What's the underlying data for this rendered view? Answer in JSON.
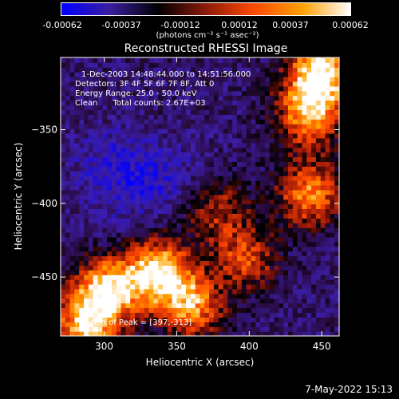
{
  "colorbar": {
    "tick_labels": [
      "-0.00062",
      "-0.00037",
      "-0.00012",
      "0.00012",
      "0.00037",
      "0.00062"
    ],
    "units": "(photons cm⁻² s⁻¹ asec⁻²)",
    "colors": [
      "#0000ff",
      "#3a1ea0",
      "#000000",
      "#8b1a0a",
      "#ff4a00",
      "#ffa000",
      "#ffffff"
    ]
  },
  "chart_data": {
    "type": "heatmap",
    "title": "Reconstructed RHESSI Image",
    "xlabel": "Heliocentric X (arcsec)",
    "ylabel": "Heliocentric Y (arcsec)",
    "xlim": [
      270,
      462
    ],
    "ylim": [
      -490,
      -301
    ],
    "xticks": [
      300,
      350,
      400,
      450
    ],
    "yticks": [
      -350,
      -400,
      -450
    ],
    "xtick_labels": [
      "300",
      "350",
      "400",
      "450"
    ],
    "ytick_labels": [
      "−350",
      "−400",
      "−450"
    ],
    "value_range": [
      -0.00062,
      0.00062
    ],
    "bright_regions": [
      {
        "x": 448,
        "y": -310,
        "level": 0.0006
      },
      {
        "x": 440,
        "y": -340,
        "level": 0.0005
      },
      {
        "x": 335,
        "y": -448,
        "level": 0.0006
      },
      {
        "x": 300,
        "y": -460,
        "level": 0.00055
      },
      {
        "x": 360,
        "y": -470,
        "level": 0.00045
      },
      {
        "x": 440,
        "y": -395,
        "level": 0.0004
      },
      {
        "x": 285,
        "y": -485,
        "level": 0.00045
      },
      {
        "x": 375,
        "y": -405,
        "level": 0.0002
      },
      {
        "x": 395,
        "y": -440,
        "level": 0.0003
      }
    ],
    "dark_regions": [
      {
        "x": 325,
        "y": -385,
        "level": -0.0004
      },
      {
        "x": 300,
        "y": -375,
        "level": -0.00035
      },
      {
        "x": 355,
        "y": -390,
        "level": -0.0003
      },
      {
        "x": 300,
        "y": -420,
        "level": -0.00025
      },
      {
        "x": 380,
        "y": -455,
        "level": -0.0003
      }
    ],
    "annotations": [
      "1-Dec-2003 14:48:44.000 to 14:51:56.000",
      "Detectors: 3F 4F 5F 6F 7F 8F, Att 0",
      "Energy Range: 25.0 - 50.0 keV",
      "Clean      Total counts: 2.67E+03",
      "Position of Peak = [397,-313]"
    ]
  },
  "footer": {
    "timestamp": "7-May-2022 15:13"
  }
}
